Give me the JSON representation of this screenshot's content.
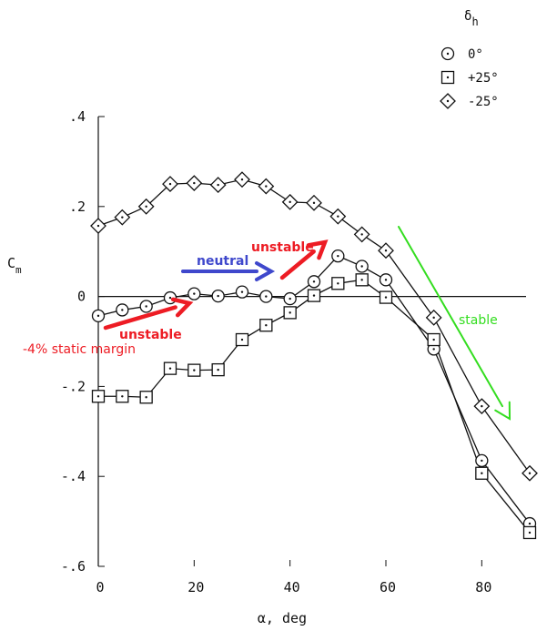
{
  "chart_data": {
    "type": "line",
    "title": "",
    "xlabel": "α, deg",
    "ylabel": "C",
    "ylabel_subscript": "m",
    "xlim": [
      0,
      90
    ],
    "ylim": [
      -0.6,
      0.4
    ],
    "xticks": [
      0,
      20,
      40,
      60,
      80
    ],
    "xtick_labels": [
      "0",
      "20",
      "40",
      "60",
      "80"
    ],
    "yticks": [
      0.4,
      0.2,
      0,
      -0.2,
      -0.4,
      -0.6
    ],
    "ytick_labels": [
      ".4",
      ".2",
      "0",
      "-.2",
      "-.4",
      "-.6"
    ],
    "grid": false,
    "legend_position": "top-right",
    "legend_title": "δ",
    "legend_title_subscript": "h",
    "series": [
      {
        "name": "0°",
        "marker": "circle",
        "x": [
          0,
          5,
          10,
          15,
          20,
          25,
          30,
          35,
          40,
          45,
          50,
          55,
          60,
          70,
          80,
          90
        ],
        "y": [
          -0.043,
          -0.03,
          -0.022,
          -0.003,
          0.006,
          0.001,
          0.01,
          0.0,
          -0.005,
          0.033,
          0.09,
          0.067,
          0.037,
          -0.117,
          -0.365,
          -0.505
        ]
      },
      {
        "name": "+25°",
        "marker": "square",
        "x": [
          0,
          5,
          10,
          15,
          20,
          25,
          30,
          35,
          40,
          45,
          50,
          55,
          60,
          70,
          80,
          90
        ],
        "y": [
          -0.222,
          -0.222,
          -0.224,
          -0.16,
          -0.164,
          -0.163,
          -0.096,
          -0.064,
          -0.036,
          0.002,
          0.029,
          0.037,
          -0.002,
          -0.096,
          -0.393,
          -0.525
        ]
      },
      {
        "name": "-25°",
        "marker": "diamond",
        "x": [
          0,
          5,
          10,
          15,
          20,
          25,
          30,
          35,
          40,
          45,
          50,
          55,
          60,
          70,
          80,
          90
        ],
        "y": [
          0.157,
          0.176,
          0.2,
          0.25,
          0.252,
          0.248,
          0.26,
          0.245,
          0.21,
          0.208,
          0.178,
          0.138,
          0.102,
          -0.047,
          -0.244,
          -0.393
        ]
      }
    ],
    "annotations": [
      {
        "text": "neutral",
        "color": "#3f48cc"
      },
      {
        "text": "unstable",
        "color": "#ed1c24"
      },
      {
        "text": "unstable",
        "color": "#ed1c24"
      },
      {
        "text": "-4% static margin",
        "color": "#ed1c24"
      },
      {
        "text": "stable",
        "color": "#33dd1f"
      }
    ]
  }
}
